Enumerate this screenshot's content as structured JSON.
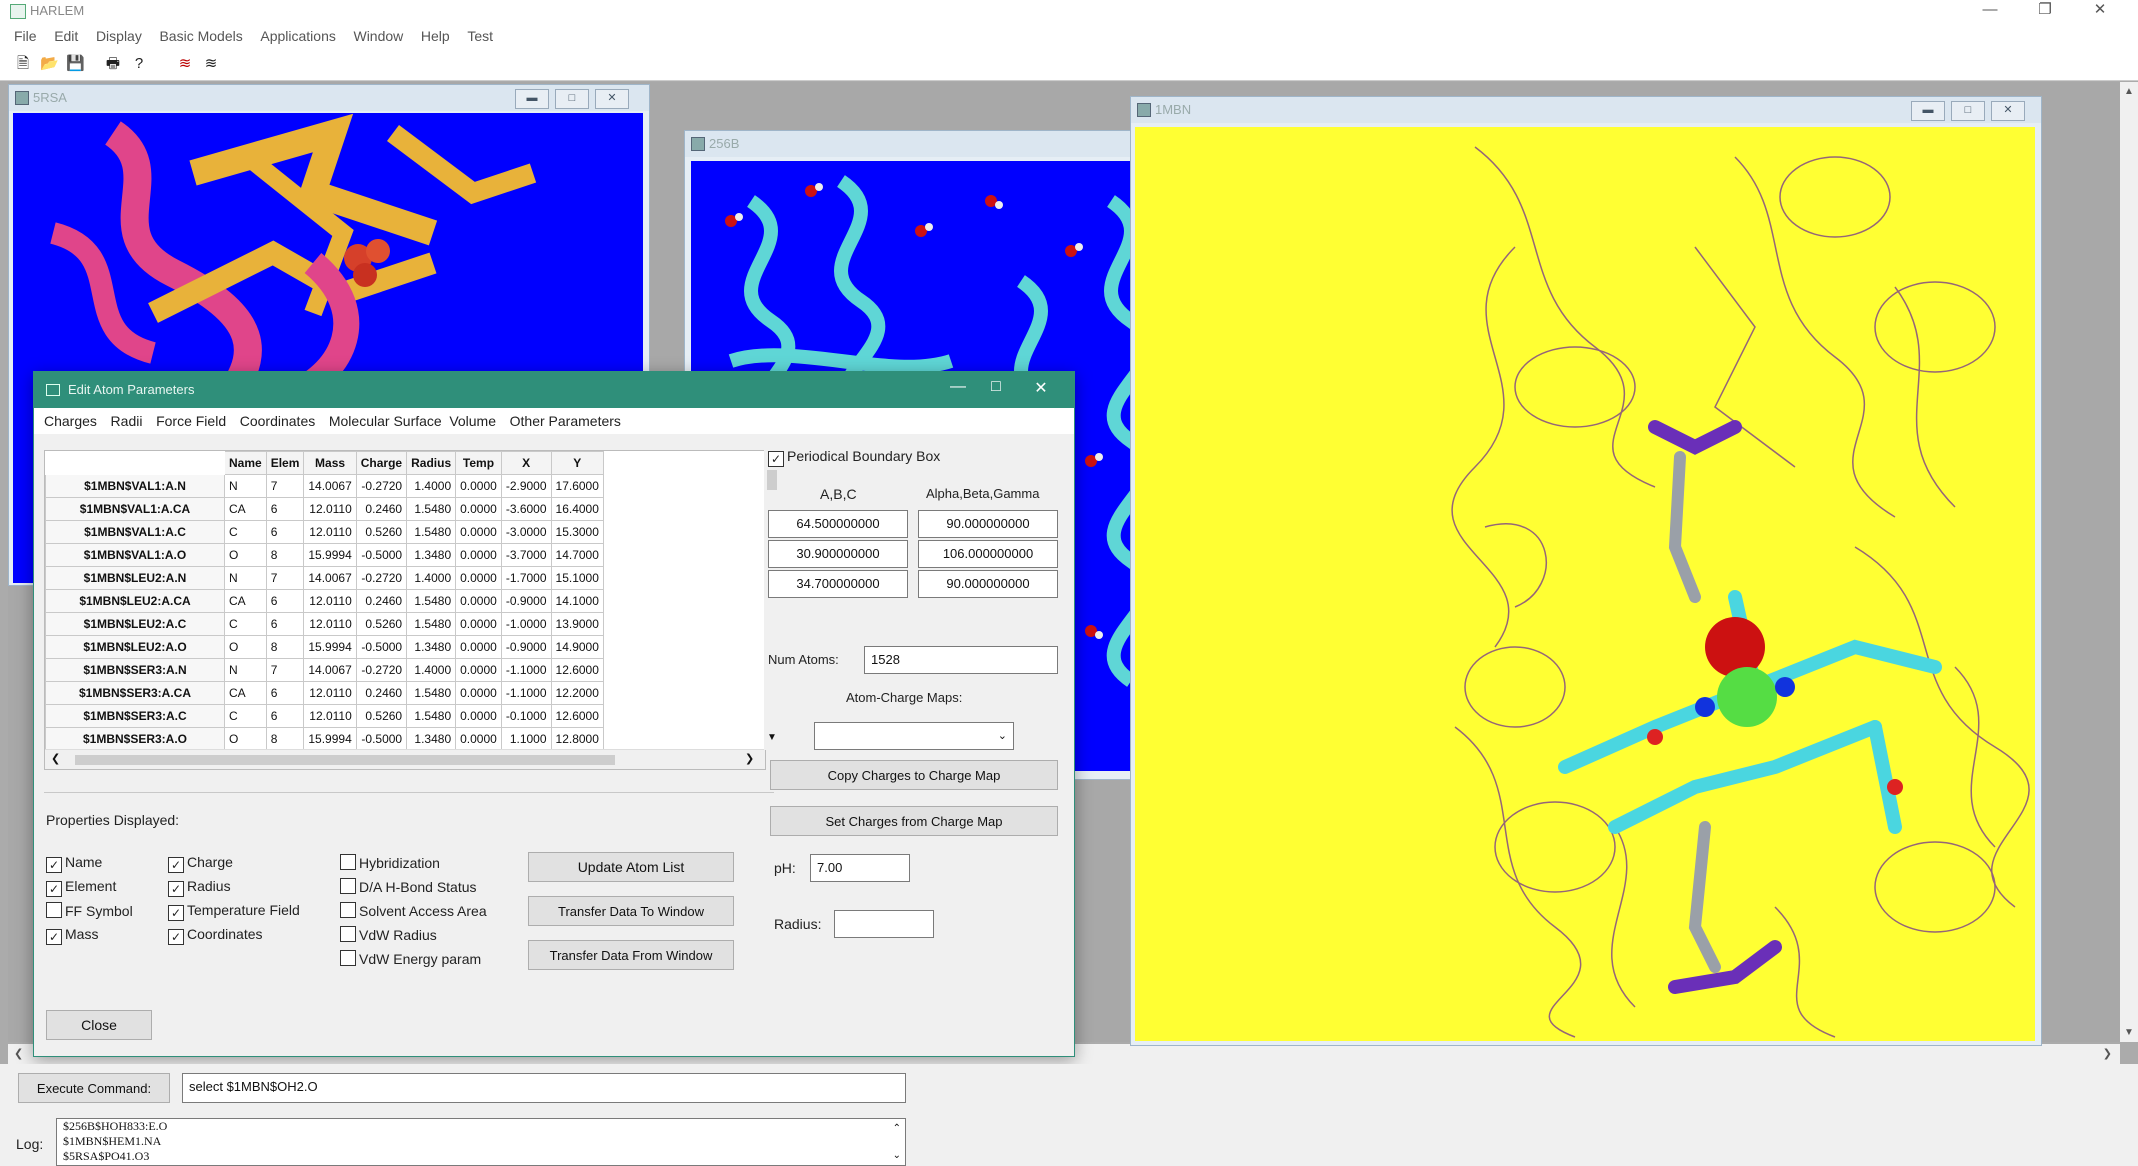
{
  "app": {
    "title": "HARLEM"
  },
  "menu": [
    "File",
    "Edit",
    "Display",
    "Basic Models",
    "Applications",
    "Window",
    "Help",
    "Test"
  ],
  "windows": {
    "w1": "5RSA",
    "w2": "256B",
    "w3": "1MBN"
  },
  "dialog": {
    "title": "Edit Atom Parameters",
    "menu": [
      "Charges",
      "Radii",
      "Force Field",
      "Coordinates",
      "Molecular Surface",
      "Volume",
      "Other Parameters"
    ],
    "columns": [
      "Name",
      "Elem",
      "Mass",
      "Charge",
      "Radius",
      "Temp",
      "X",
      "Y"
    ],
    "rows": [
      {
        "id": "$1MBN$VAL1:A.N",
        "cells": [
          "N",
          "7",
          "14.0067",
          "-0.2720",
          "1.4000",
          "0.0000",
          "-2.9000",
          "17.6000"
        ]
      },
      {
        "id": "$1MBN$VAL1:A.CA",
        "cells": [
          "CA",
          "6",
          "12.0110",
          "0.2460",
          "1.5480",
          "0.0000",
          "-3.6000",
          "16.4000"
        ]
      },
      {
        "id": "$1MBN$VAL1:A.C",
        "cells": [
          "C",
          "6",
          "12.0110",
          "0.5260",
          "1.5480",
          "0.0000",
          "-3.0000",
          "15.3000"
        ]
      },
      {
        "id": "$1MBN$VAL1:A.O",
        "cells": [
          "O",
          "8",
          "15.9994",
          "-0.5000",
          "1.3480",
          "0.0000",
          "-3.7000",
          "14.7000"
        ]
      },
      {
        "id": "$1MBN$LEU2:A.N",
        "cells": [
          "N",
          "7",
          "14.0067",
          "-0.2720",
          "1.4000",
          "0.0000",
          "-1.7000",
          "15.1000"
        ]
      },
      {
        "id": "$1MBN$LEU2:A.CA",
        "cells": [
          "CA",
          "6",
          "12.0110",
          "0.2460",
          "1.5480",
          "0.0000",
          "-0.9000",
          "14.1000"
        ]
      },
      {
        "id": "$1MBN$LEU2:A.C",
        "cells": [
          "C",
          "6",
          "12.0110",
          "0.5260",
          "1.5480",
          "0.0000",
          "-1.0000",
          "13.9000"
        ]
      },
      {
        "id": "$1MBN$LEU2:A.O",
        "cells": [
          "O",
          "8",
          "15.9994",
          "-0.5000",
          "1.3480",
          "0.0000",
          "-0.9000",
          "14.9000"
        ]
      },
      {
        "id": "$1MBN$SER3:A.N",
        "cells": [
          "N",
          "7",
          "14.0067",
          "-0.2720",
          "1.4000",
          "0.0000",
          "-1.1000",
          "12.6000"
        ]
      },
      {
        "id": "$1MBN$SER3:A.CA",
        "cells": [
          "CA",
          "6",
          "12.0110",
          "0.2460",
          "1.5480",
          "0.0000",
          "-1.1000",
          "12.2000"
        ]
      },
      {
        "id": "$1MBN$SER3:A.C",
        "cells": [
          "C",
          "6",
          "12.0110",
          "0.5260",
          "1.5480",
          "0.0000",
          "-0.1000",
          "12.6000"
        ]
      },
      {
        "id": "$1MBN$SER3:A.O",
        "cells": [
          "O",
          "8",
          "15.9994",
          "-0.5000",
          "1.3480",
          "0.0000",
          "1.1000",
          "12.8000"
        ]
      }
    ],
    "props_label": "Properties Displayed:",
    "props": [
      {
        "label": "Name",
        "checked": true
      },
      {
        "label": "Element",
        "checked": true
      },
      {
        "label": "FF Symbol",
        "checked": false
      },
      {
        "label": "Mass",
        "checked": true
      },
      {
        "label": "Charge",
        "checked": true
      },
      {
        "label": "Radius",
        "checked": true
      },
      {
        "label": "Temperature Field",
        "checked": true
      },
      {
        "label": "Coordinates",
        "checked": true
      },
      {
        "label": "Hybridization",
        "checked": false
      },
      {
        "label": "D/A H-Bond Status",
        "checked": false
      },
      {
        "label": "Solvent Access Area",
        "checked": false
      },
      {
        "label": "VdW Radius",
        "checked": false
      },
      {
        "label": "VdW Energy param",
        "checked": false
      }
    ],
    "buttons": {
      "update": "Update Atom List",
      "to_window": "Transfer Data To Window",
      "from_window": "Transfer Data From Window",
      "close": "Close"
    },
    "pbc_label": "Periodical Boundary Box",
    "abc_label": "A,B,C",
    "angles_label": "Alpha,Beta,Gamma",
    "abc": [
      "64.500000000",
      "30.900000000",
      "34.700000000"
    ],
    "angles": [
      "90.000000000",
      "106.000000000",
      "90.000000000"
    ],
    "num_atoms_label": "Num Atoms:",
    "num_atoms": "1528",
    "charge_maps_label": "Atom-Charge Maps:",
    "copy_btn": "Copy Charges to Charge Map",
    "set_btn": "Set Charges from Charge Map",
    "ph_label": "pH:",
    "ph": "7.00",
    "radius_label": "Radius:"
  },
  "command": {
    "button": "Execute Command:",
    "value": "select $1MBN$OH2.O"
  },
  "log": {
    "label": "Log:",
    "lines": [
      "$256B$HOH833:E.O",
      "$1MBN$HEM1.NA",
      "$5RSA$PO41.O3"
    ]
  }
}
